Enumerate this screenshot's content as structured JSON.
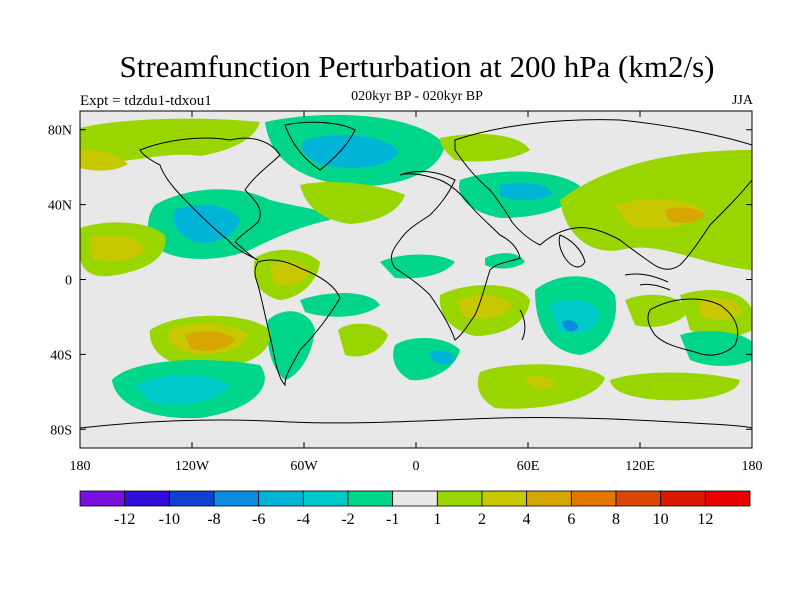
{
  "title": "Streamfunction Perturbation at 200 hPa (km2/s)",
  "left_label": "Expt = tdzdu1-tdxou1",
  "center_label": "020kyr BP - 020kyr BP",
  "right_label": "JJA",
  "map": {
    "lon_range": [
      -180,
      180
    ],
    "lat_range": [
      -90,
      90
    ],
    "x_ticks": [
      {
        "value": -180,
        "label": "180"
      },
      {
        "value": -120,
        "label": "120W"
      },
      {
        "value": -60,
        "label": "60W"
      },
      {
        "value": 0,
        "label": "0"
      },
      {
        "value": 60,
        "label": "60E"
      },
      {
        "value": 120,
        "label": "120E"
      },
      {
        "value": 180,
        "label": "180"
      }
    ],
    "y_ticks": [
      {
        "value": 80,
        "label": "80N"
      },
      {
        "value": 40,
        "label": "40N"
      },
      {
        "value": 0,
        "label": "0"
      },
      {
        "value": -40,
        "label": "40S"
      },
      {
        "value": -80,
        "label": "80S"
      }
    ],
    "colors": {
      "neutral": "#e8e8e8",
      "c_neg1": "#00d68a",
      "c_neg2": "#00c8c8",
      "c_neg3": "#00b4d8",
      "c_neg4": "#0a8be0",
      "c_pos1": "#99d600",
      "c_pos2": "#c8c800",
      "c_pos3": "#d8a600",
      "c_pos4": "#e07800"
    }
  },
  "colorbar": {
    "colors": [
      "#7a10dc",
      "#3010d8",
      "#1040d0",
      "#0a8be0",
      "#00b4d8",
      "#00c8c8",
      "#00d68a",
      "#e8e8e8",
      "#99d600",
      "#c8c800",
      "#d8a600",
      "#e07800",
      "#d84800",
      "#d81800",
      "#e80000"
    ],
    "labels": [
      "-12",
      "-10",
      "-8",
      "-6",
      "-4",
      "-2",
      "-1",
      "1",
      "2",
      "4",
      "6",
      "8",
      "10",
      "12"
    ]
  }
}
